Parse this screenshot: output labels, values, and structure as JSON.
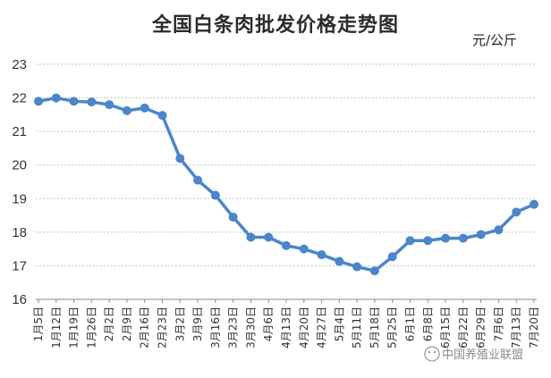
{
  "chart_data": {
    "type": "line",
    "title": "全国白条肉批发价格走势图",
    "unit": "元/公斤",
    "ylim": [
      16,
      23
    ],
    "yticks": [
      16,
      17,
      18,
      19,
      20,
      21,
      22,
      23
    ],
    "grid": true,
    "categories": [
      "1月5日",
      "1月12日",
      "1月19日",
      "1月26日",
      "2月2日",
      "2月9日",
      "2月16日",
      "2月23日",
      "3月2日",
      "3月9日",
      "3月16日",
      "3月23日",
      "3月30日",
      "4月6日",
      "4月13日",
      "4月20日",
      "4月27日",
      "5月4日",
      "5月11日",
      "5月18日",
      "5月25日",
      "6月1日",
      "6月8日",
      "6月15日",
      "6月22日",
      "6月29日",
      "7月6日",
      "7月13日",
      "7月20日"
    ],
    "series": [
      {
        "values": [
          21.9,
          22.0,
          21.9,
          21.88,
          21.8,
          21.62,
          21.7,
          21.48,
          20.2,
          19.55,
          19.1,
          18.45,
          17.85,
          17.85,
          17.6,
          17.5,
          17.33,
          17.13,
          16.97,
          16.85,
          17.27,
          17.75,
          17.75,
          17.82,
          17.82,
          17.93,
          18.07,
          18.6,
          18.83
        ],
        "color": "#4a86c8"
      }
    ]
  },
  "watermark": {
    "text": "中国养殖业联盟",
    "icon": "wechat-icon"
  }
}
